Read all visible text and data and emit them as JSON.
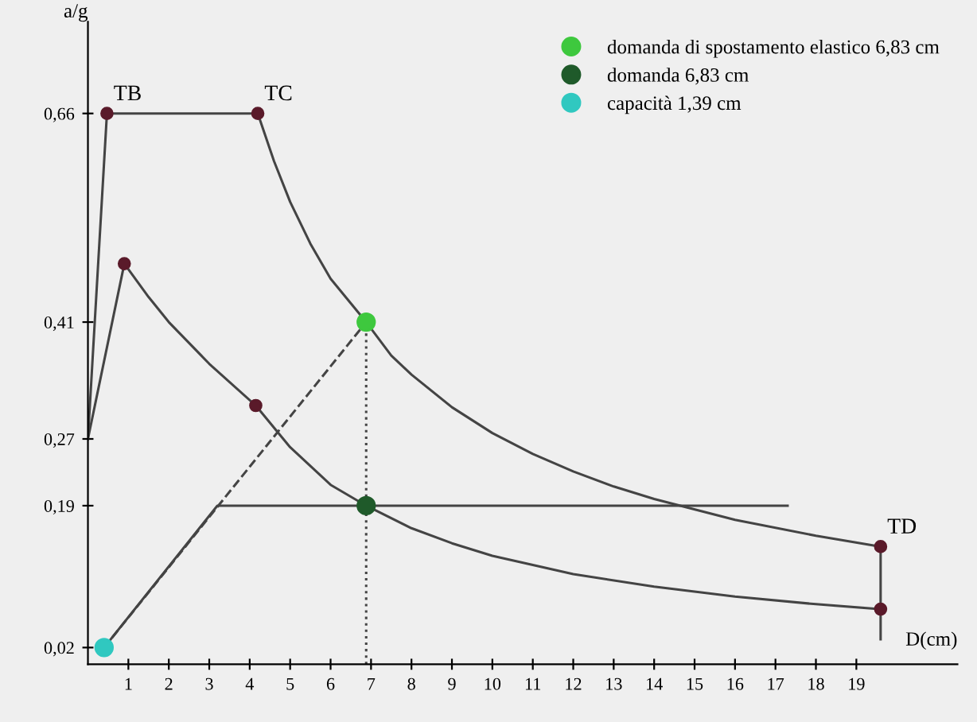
{
  "chart_data": {
    "type": "line",
    "xlabel": "D(cm)",
    "ylabel": "a/g",
    "xlim": [
      0,
      21.5
    ],
    "ylim": [
      0,
      0.77
    ],
    "xticks": [
      1,
      2,
      3,
      4,
      5,
      6,
      7,
      8,
      9,
      10,
      11,
      12,
      13,
      14,
      15,
      16,
      17,
      18,
      19
    ],
    "yticks": [
      {
        "value": 0.02,
        "label": "0,02"
      },
      {
        "value": 0.19,
        "label": "0,19"
      },
      {
        "value": 0.27,
        "label": "0,27"
      },
      {
        "value": 0.41,
        "label": "0,41"
      },
      {
        "value": 0.66,
        "label": "0,66"
      }
    ],
    "grid": false,
    "legend": "top right",
    "series": [
      {
        "color": "#444444",
        "x": [
          0,
          0.47,
          4.2,
          4.6,
          5,
          5.5,
          6,
          6.88,
          7.5,
          8,
          9,
          10,
          11,
          12,
          13,
          14,
          16,
          18,
          19.6
        ],
        "values": [
          0.27,
          0.66,
          0.66,
          0.603,
          0.554,
          0.504,
          0.462,
          0.41,
          0.37,
          0.347,
          0.308,
          0.277,
          0.252,
          0.231,
          0.213,
          0.198,
          0.173,
          0.154,
          0.141
        ]
      },
      {
        "color": "#444444",
        "x": [
          0,
          0.9,
          1.5,
          2,
          3,
          4.15,
          5,
          6,
          6.88,
          8,
          9,
          10,
          12,
          14,
          16,
          18,
          19.6
        ],
        "values": [
          0.27,
          0.48,
          0.44,
          0.41,
          0.36,
          0.31,
          0.26,
          0.215,
          0.19,
          0.163,
          0.145,
          0.13,
          0.108,
          0.093,
          0.081,
          0.072,
          0.066
        ]
      },
      {
        "color": "#444444",
        "x": [
          0.4,
          3.2,
          17.3
        ],
        "values": [
          0.02,
          0.19,
          0.19
        ]
      },
      {
        "color": "#444444",
        "line_style": "dashed",
        "x": [
          0.4,
          6.88
        ],
        "values": [
          0.02,
          0.41
        ]
      },
      {
        "color": "#444444",
        "line_style": "dotted",
        "x": [
          6.88,
          6.88
        ],
        "values": [
          0,
          0.41
        ]
      },
      {
        "color": "#444444",
        "x": [
          19.6,
          19.6
        ],
        "values": [
          0.03,
          0.141
        ]
      },
      {
        "type": "scatter",
        "color": "#5a1a2a",
        "marker": "circle",
        "x": [
          0.47,
          4.2,
          0.9,
          4.15,
          19.6,
          19.6
        ],
        "values": [
          0.66,
          0.66,
          0.48,
          0.31,
          0.141,
          0.066
        ]
      },
      {
        "type": "scatter",
        "name": "domanda di spostamento elastico 6,83 cm",
        "color": "#3ec83e",
        "marker": "circle",
        "x": [
          6.88
        ],
        "values": [
          0.41
        ]
      },
      {
        "type": "scatter",
        "name": "domanda 6,83 cm",
        "color": "#1f5a2a",
        "marker": "circle",
        "x": [
          6.88
        ],
        "values": [
          0.19
        ]
      },
      {
        "type": "scatter",
        "name": "capacità 1,39 cm",
        "color": "#30c8c0",
        "marker": "circle",
        "x": [
          0.4
        ],
        "values": [
          0.02
        ]
      }
    ],
    "annotations": [
      {
        "text": "TB",
        "x": 0.47,
        "y": 0.66
      },
      {
        "text": "TC",
        "x": 4.2,
        "y": 0.66
      },
      {
        "text": "TD",
        "x": 19.6,
        "y": 0.141
      }
    ]
  }
}
